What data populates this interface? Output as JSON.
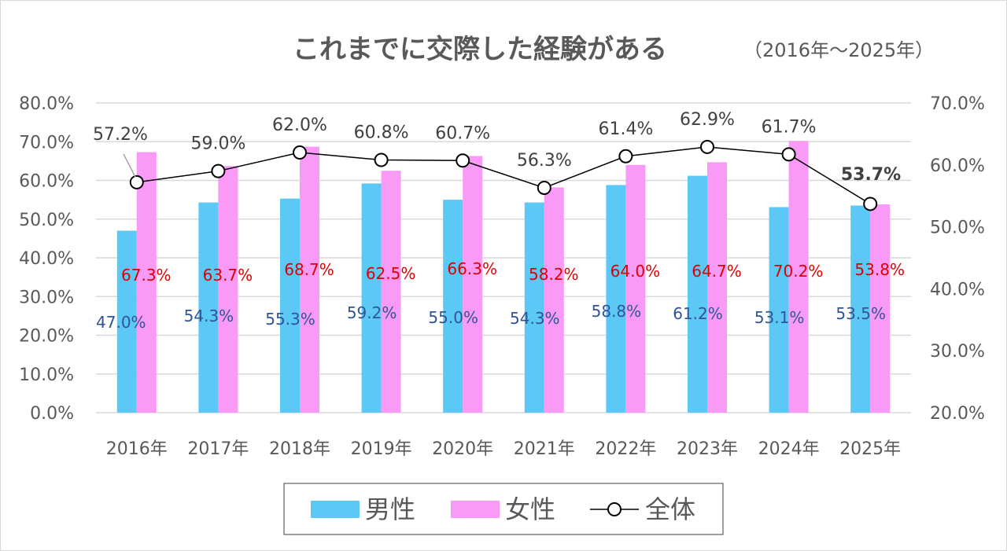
{
  "chart_data": {
    "type": "bar+line",
    "title": "これまでに交際した経験がある",
    "subtitle": "（2016年～2025年）",
    "categories": [
      "2016年",
      "2017年",
      "2018年",
      "2019年",
      "2020年",
      "2021年",
      "2022年",
      "2023年",
      "2024年",
      "2025年"
    ],
    "series": [
      {
        "name": "男性",
        "type": "bar",
        "axis": "left",
        "color": "#5BC8F5",
        "values": [
          47.0,
          54.3,
          55.3,
          59.2,
          55.0,
          54.3,
          58.8,
          61.2,
          53.1,
          53.5
        ],
        "labels": [
          "47.0%",
          "54.3%",
          "55.3%",
          "59.2%",
          "55.0%",
          "54.3%",
          "58.8%",
          "61.2%",
          "53.1%",
          "53.5%"
        ]
      },
      {
        "name": "女性",
        "type": "bar",
        "axis": "left",
        "color": "#F99AF7",
        "values": [
          67.3,
          63.7,
          68.7,
          62.5,
          66.3,
          58.2,
          64.0,
          64.7,
          70.2,
          53.8
        ],
        "labels": [
          "67.3%",
          "63.7%",
          "68.7%",
          "62.5%",
          "66.3%",
          "58.2%",
          "64.0%",
          "64.7%",
          "70.2%",
          "53.8%"
        ]
      },
      {
        "name": "全体",
        "type": "line",
        "axis": "right",
        "color": "#000000",
        "values": [
          57.2,
          59.0,
          62.0,
          60.8,
          60.7,
          56.3,
          61.4,
          62.9,
          61.7,
          53.7
        ],
        "labels": [
          "57.2%",
          "59.0%",
          "62.0%",
          "60.8%",
          "60.7%",
          "56.3%",
          "61.4%",
          "62.9%",
          "61.7%",
          "53.7%"
        ]
      }
    ],
    "left_axis": {
      "ylim": [
        0,
        80
      ],
      "ticks": [
        "0.0%",
        "10.0%",
        "20.0%",
        "30.0%",
        "40.0%",
        "50.0%",
        "60.0%",
        "70.0%",
        "80.0%"
      ]
    },
    "right_axis": {
      "ylim": [
        20,
        70
      ],
      "ticks": [
        "20.0%",
        "30.0%",
        "40.0%",
        "50.0%",
        "60.0%",
        "70.0%"
      ]
    },
    "grid": true,
    "legend": "bottom",
    "label_colors": {
      "male": "#2F5597",
      "female": "#E00000",
      "total": "#404040"
    }
  }
}
